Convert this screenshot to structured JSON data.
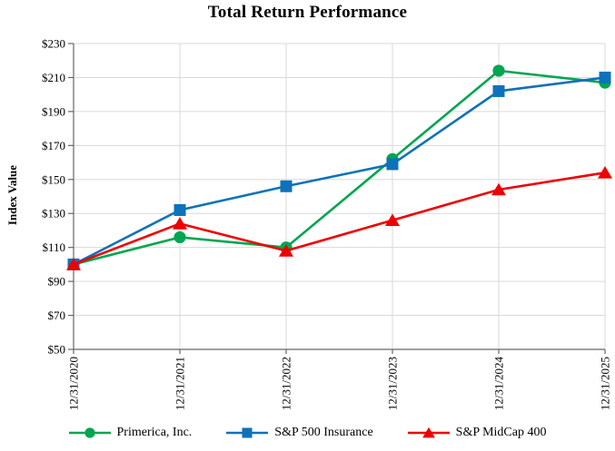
{
  "title": "Total Return Performance",
  "colors": {
    "primerica": "#00A651",
    "sp500_insurance": "#0D72BA",
    "sp_midcap400": "#EE0000",
    "grid": "#D9D9D9",
    "axis": "#666666",
    "text": "#000000",
    "background": "#FFFFFF"
  },
  "chart_data": {
    "type": "line",
    "title": "Total Return Performance",
    "xlabel": "",
    "ylabel": "Index Value",
    "ylim": [
      50,
      230
    ],
    "y_tick_prefix": "$",
    "y_tick_values": [
      230,
      210,
      190,
      170,
      150,
      130,
      110,
      90,
      70,
      50
    ],
    "y_tick_labels": [
      "$230",
      "$210",
      "$190",
      "$170",
      "$150",
      "$130",
      "$110",
      "$90",
      "$70",
      "$50"
    ],
    "categories": [
      "12/31/2020",
      "12/31/2021",
      "12/31/2022",
      "12/31/2023",
      "12/31/2024",
      "12/31/2025"
    ],
    "grid": true,
    "legend_position": "bottom",
    "series": [
      {
        "name": "Primerica, Inc.",
        "marker": "circle",
        "color": "#00A651",
        "values": [
          100,
          116,
          110,
          162,
          214,
          207
        ]
      },
      {
        "name": "S&P 500 Insurance",
        "marker": "square",
        "color": "#0D72BA",
        "values": [
          100,
          132,
          146,
          159,
          202,
          210
        ]
      },
      {
        "name": "S&P MidCap 400",
        "marker": "triangle",
        "color": "#EE0000",
        "values": [
          100,
          124,
          108,
          126,
          144,
          154
        ]
      }
    ]
  }
}
